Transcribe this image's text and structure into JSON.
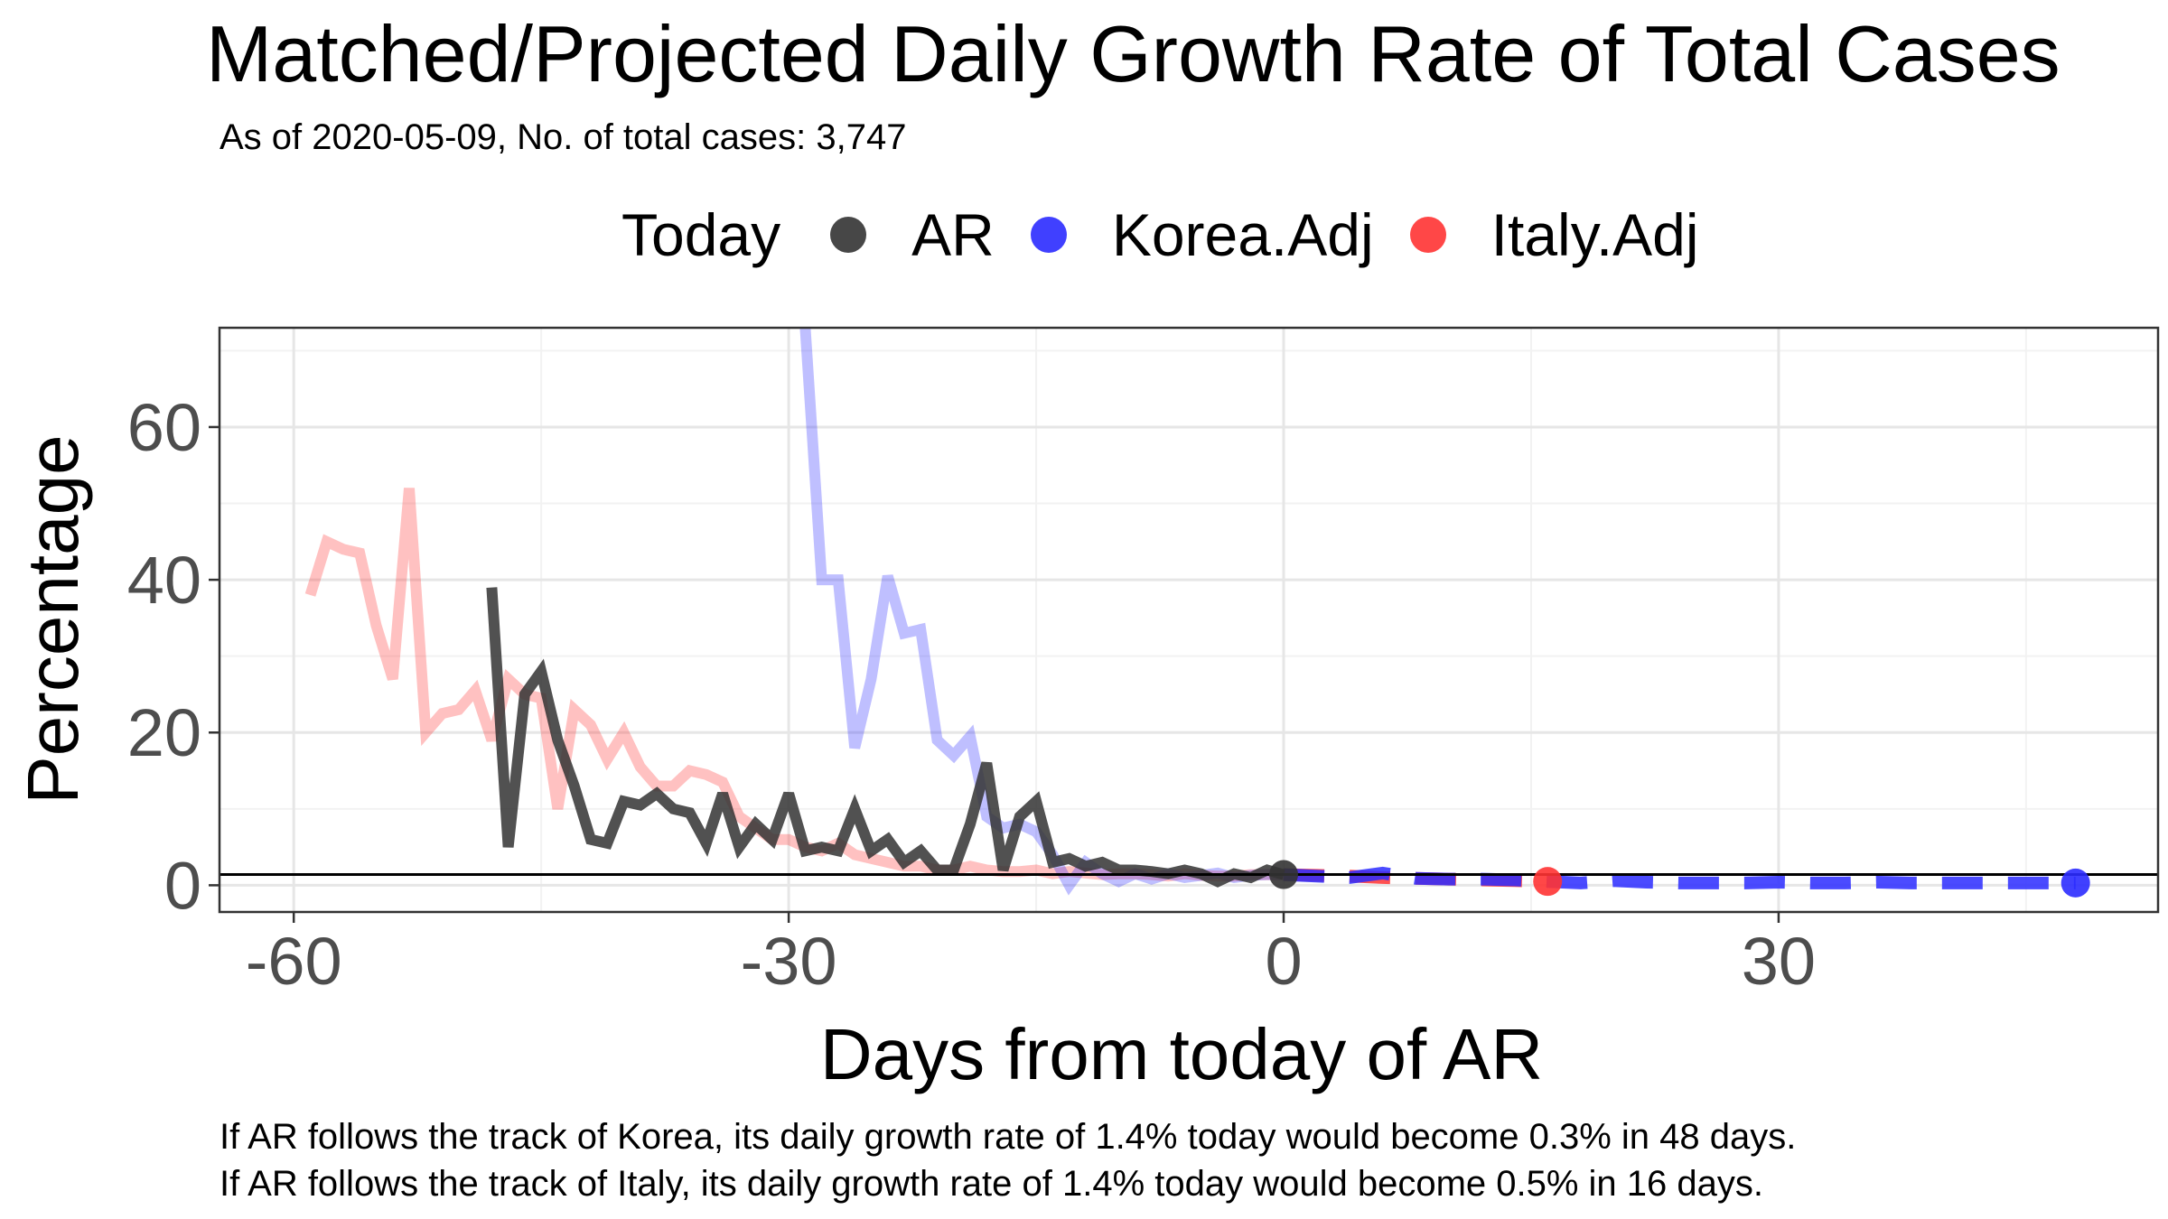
{
  "title": "Matched/Projected Daily Growth Rate of Total Cases",
  "subtitle": "As of 2020-05-09, No. of total cases: 3,747",
  "legend": {
    "title": "Today",
    "items": [
      {
        "label": "AR",
        "color": "#333333"
      },
      {
        "label": "Korea.Adj",
        "color": "#2b2bff"
      },
      {
        "label": "Italy.Adj",
        "color": "#ff3333"
      }
    ]
  },
  "captions": [
    "If AR follows the track of Korea, its daily growth rate of 1.4% today would become 0.3% in 48 days.",
    "If AR follows the track of Italy, its daily growth rate of 1.4% today would become 0.5% in 16 days."
  ],
  "chart_data": {
    "type": "line",
    "title": "Matched/Projected Daily Growth Rate of Total Cases",
    "xlabel": "Days from today of AR",
    "ylabel": "Percentage",
    "xlim": [
      -64.5,
      53
    ],
    "ylim": [
      -3.5,
      73
    ],
    "xticks": [
      -60,
      -30,
      0,
      30
    ],
    "yticks": [
      0,
      20,
      40,
      60
    ],
    "grid": true,
    "legend_position": "top",
    "hline": 1.4,
    "series": [
      {
        "name": "Italy.Adj",
        "color": "#ff3333",
        "past_opacity": 0.3,
        "x": [
          -59,
          -58,
          -57,
          -56,
          -55,
          -54,
          -53,
          -52,
          -51,
          -50,
          -49,
          -48,
          -47,
          -46,
          -45,
          -44,
          -43,
          -42,
          -41,
          -40,
          -39,
          -38,
          -37,
          -36,
          -35,
          -34,
          -33,
          -32,
          -31,
          -30,
          -29,
          -28,
          -27,
          -26,
          -25,
          -24,
          -23,
          -22,
          -21,
          -20,
          -19,
          -18,
          -17,
          -16,
          -15,
          -14,
          -13,
          -12,
          -11,
          -10,
          -9,
          -8,
          -7,
          -6,
          -5,
          -4,
          -3,
          -2,
          -1,
          0
        ],
        "y": [
          38,
          45,
          44,
          43.5,
          34,
          27,
          52,
          20,
          22.5,
          23,
          25.5,
          19,
          27,
          25,
          24.5,
          10,
          23,
          21,
          16.5,
          20,
          15.5,
          13,
          13,
          15,
          14.5,
          13.5,
          9,
          7.5,
          6,
          6,
          5,
          4.5,
          5.5,
          4,
          3.5,
          3,
          2.5,
          2.5,
          2,
          2,
          2.5,
          2,
          1.8,
          1.8,
          2,
          1.5,
          1.8,
          1.6,
          1.4,
          1.5,
          1.5,
          1.4,
          1.2,
          1.5,
          1.3,
          1.2,
          1.2,
          1.4,
          1.4,
          1.4
        ],
        "projected_x": [
          0,
          2,
          4,
          6,
          8,
          10,
          12,
          14,
          16
        ],
        "projected_y": [
          1.4,
          1.3,
          1.2,
          1.0,
          0.9,
          0.8,
          0.7,
          0.6,
          0.5
        ]
      },
      {
        "name": "Korea.Adj",
        "color": "#2b2bff",
        "past_opacity": 0.3,
        "x": [
          -29,
          -28,
          -27,
          -26,
          -25,
          -24,
          -23,
          -22,
          -21,
          -20,
          -19,
          -18,
          -17,
          -16,
          -15,
          -14,
          -13,
          -12,
          -11,
          -10,
          -9,
          -8,
          -7,
          -6,
          -5,
          -4,
          -3,
          -2,
          -1,
          0
        ],
        "y": [
          73,
          40,
          40,
          18,
          27,
          40.5,
          33,
          33.5,
          19,
          17,
          19.5,
          9,
          7.5,
          8,
          7,
          4,
          0,
          3,
          1.5,
          0.5,
          1.5,
          0.8,
          1.5,
          1.0,
          1.3,
          1.6,
          1.0,
          1.3,
          1.4,
          1.4
        ],
        "projected_x": [
          0,
          2,
          4,
          6,
          8,
          10,
          12,
          14,
          16,
          18,
          20,
          22,
          24,
          26,
          28,
          30,
          32,
          34,
          36,
          38,
          40,
          42,
          44,
          46,
          48
        ],
        "projected_y": [
          1.4,
          1.2,
          1.0,
          1.6,
          0.9,
          0.8,
          0.8,
          0.7,
          0.5,
          0.3,
          0.6,
          0.4,
          0.3,
          0.3,
          0.3,
          0.4,
          0.3,
          0.3,
          0.4,
          0.3,
          0.3,
          0.3,
          0.3,
          0.3,
          0.3
        ]
      },
      {
        "name": "AR",
        "color": "#333333",
        "past_opacity": 0.85,
        "x": [
          -48,
          -47,
          -46,
          -45,
          -44,
          -43,
          -42,
          -41,
          -40,
          -39,
          -38,
          -37,
          -36,
          -35,
          -34,
          -33,
          -32,
          -31,
          -30,
          -29,
          -28,
          -27,
          -26,
          -25,
          -24,
          -23,
          -22,
          -21,
          -20,
          -19,
          -18,
          -17,
          -16,
          -15,
          -14,
          -13,
          -12,
          -11,
          -10,
          -9,
          -8,
          -7,
          -6,
          -5,
          -4,
          -3,
          -2,
          -1,
          0
        ],
        "y": [
          39,
          5,
          25,
          28,
          19,
          13,
          6,
          5.5,
          11,
          10.5,
          12,
          10,
          9.5,
          5.5,
          12,
          5,
          8,
          6,
          12,
          4.5,
          5,
          4.5,
          10,
          4.5,
          6,
          3,
          4.5,
          2,
          2,
          8,
          16,
          2,
          9,
          11,
          3,
          3.5,
          2.5,
          3,
          2,
          2,
          1.8,
          1.5,
          2,
          1.5,
          0.5,
          1.5,
          1,
          2,
          1.4
        ]
      }
    ],
    "today_points": [
      {
        "series": "AR",
        "x": 0,
        "y": 1.4
      },
      {
        "series": "Italy.Adj",
        "x": 16,
        "y": 0.5
      },
      {
        "series": "Korea.Adj",
        "x": 48,
        "y": 0.3
      }
    ]
  }
}
